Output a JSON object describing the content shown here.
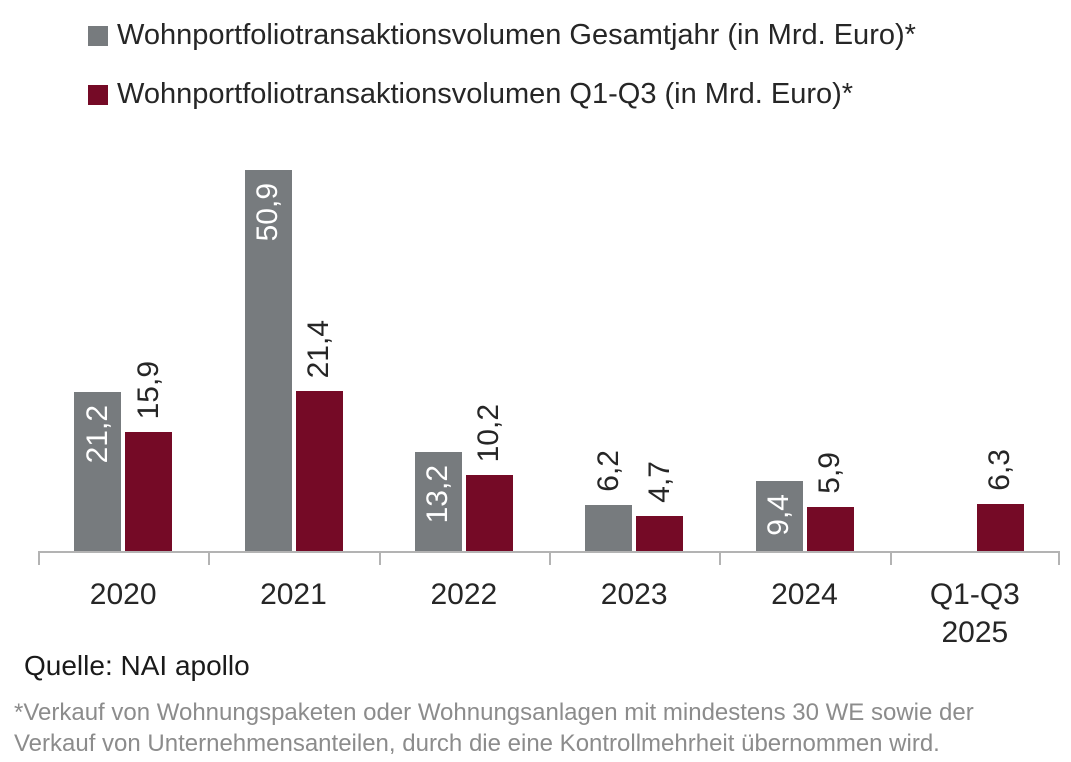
{
  "legend": [
    {
      "label": "Wohnportfoliotransaktionsvolumen Gesamtjahr (in Mrd. Euro)*",
      "color": "#777b7e"
    },
    {
      "label": "Wohnportfoliotransaktionsvolumen Q1-Q3 (in Mrd. Euro)*",
      "color": "#750a26"
    }
  ],
  "source": "Quelle: NAI apollo",
  "footnote": "*Verkauf von Wohnungspaketen oder Wohnungsanlagen mit mindestens 30 WE sowie der\nVerkauf von Unternehmensanteilen, durch die eine Kontrollmehrheit übernommen wird.",
  "chart_data": {
    "type": "bar",
    "title": "",
    "xlabel": "",
    "ylabel": "",
    "categories": [
      "2020",
      "2021",
      "2022",
      "2023",
      "2024",
      "Q1-Q3\n2025"
    ],
    "series": [
      {
        "name": "Wohnportfoliotransaktionsvolumen Gesamtjahr (in Mrd. Euro)*",
        "color": "#777b7e",
        "values": [
          21.2,
          50.9,
          13.2,
          6.2,
          9.4,
          null
        ],
        "value_labels": [
          "21,2",
          "50,9",
          "13,2",
          "6,2",
          "9,4",
          ""
        ],
        "label_inside": [
          true,
          true,
          true,
          false,
          true,
          false
        ]
      },
      {
        "name": "Wohnportfoliotransaktionsvolumen Q1-Q3 (in Mrd. Euro)*",
        "color": "#750a26",
        "values": [
          15.9,
          21.4,
          10.2,
          4.7,
          5.9,
          6.3
        ],
        "value_labels": [
          "15,9",
          "21,4",
          "10,2",
          "4,7",
          "5,9",
          "6,3"
        ],
        "label_inside": [
          false,
          false,
          false,
          false,
          false,
          false
        ]
      }
    ],
    "ylim": [
      0,
      55.2
    ],
    "grid": false,
    "y_axis_visible": false,
    "legend_position": "top-left",
    "value_label_rotation": 90,
    "axis_color": "#b3b3b3",
    "text_color": "#262626",
    "footnote_color": "#8c8c8c"
  }
}
